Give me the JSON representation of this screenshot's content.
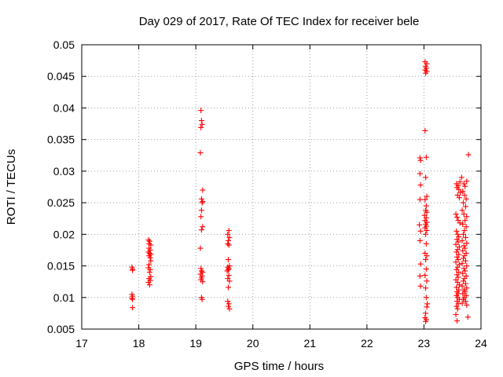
{
  "chart_data": {
    "type": "scatter",
    "title": "Day 029 of 2017, Rate Of TEC Index for receiver bele",
    "xlabel": "GPS time / hours",
    "ylabel": "ROTI / TECUs",
    "xlim": [
      17,
      24
    ],
    "ylim": [
      0.005,
      0.05
    ],
    "xticks": [
      17,
      18,
      19,
      20,
      21,
      22,
      23,
      24
    ],
    "xtick_labels": [
      "17",
      "18",
      "19",
      "20",
      "21",
      "22",
      "23",
      "24"
    ],
    "yticks": [
      0.005,
      0.01,
      0.015,
      0.02,
      0.025,
      0.03,
      0.035,
      0.04,
      0.045,
      0.05
    ],
    "ytick_labels": [
      "0.005",
      "0.01",
      "0.015",
      "0.02",
      "0.025",
      "0.03",
      "0.035",
      "0.04",
      "0.045",
      "0.05"
    ],
    "grid": true,
    "marker": "+",
    "color": "#ff0000",
    "series": [
      {
        "name": "ROTI",
        "points": [
          [
            17.88,
            0.0148
          ],
          [
            17.89,
            0.0145
          ],
          [
            17.89,
            0.0143
          ],
          [
            17.88,
            0.0105
          ],
          [
            17.89,
            0.0102
          ],
          [
            17.88,
            0.0099
          ],
          [
            17.89,
            0.0097
          ],
          [
            17.89,
            0.0084
          ],
          [
            18.17,
            0.0191
          ],
          [
            18.19,
            0.0189
          ],
          [
            18.18,
            0.0185
          ],
          [
            18.21,
            0.0183
          ],
          [
            18.18,
            0.0178
          ],
          [
            18.2,
            0.0175
          ],
          [
            18.17,
            0.0172
          ],
          [
            18.19,
            0.017
          ],
          [
            18.21,
            0.0168
          ],
          [
            18.18,
            0.0166
          ],
          [
            18.2,
            0.0163
          ],
          [
            18.21,
            0.0158
          ],
          [
            18.18,
            0.0152
          ],
          [
            18.17,
            0.0147
          ],
          [
            18.2,
            0.0144
          ],
          [
            18.19,
            0.014
          ],
          [
            18.21,
            0.0133
          ],
          [
            18.18,
            0.013
          ],
          [
            18.2,
            0.0127
          ],
          [
            18.17,
            0.0124
          ],
          [
            18.19,
            0.012
          ],
          [
            19.09,
            0.0396
          ],
          [
            19.1,
            0.038
          ],
          [
            19.11,
            0.0374
          ],
          [
            19.09,
            0.0369
          ],
          [
            19.08,
            0.0329
          ],
          [
            19.12,
            0.027
          ],
          [
            19.1,
            0.0256
          ],
          [
            19.12,
            0.0252
          ],
          [
            19.11,
            0.025
          ],
          [
            19.1,
            0.0238
          ],
          [
            19.09,
            0.0228
          ],
          [
            19.12,
            0.0212
          ],
          [
            19.1,
            0.0207
          ],
          [
            19.08,
            0.0178
          ],
          [
            19.09,
            0.0146
          ],
          [
            19.1,
            0.0142
          ],
          [
            19.12,
            0.014
          ],
          [
            19.08,
            0.0137
          ],
          [
            19.11,
            0.0134
          ],
          [
            19.1,
            0.0131
          ],
          [
            19.09,
            0.0128
          ],
          [
            19.12,
            0.0125
          ],
          [
            19.1,
            0.01
          ],
          [
            19.11,
            0.0097
          ],
          [
            19.58,
            0.0206
          ],
          [
            19.56,
            0.02
          ],
          [
            19.59,
            0.0195
          ],
          [
            19.57,
            0.019
          ],
          [
            19.56,
            0.0185
          ],
          [
            19.58,
            0.0183
          ],
          [
            19.57,
            0.016
          ],
          [
            19.59,
            0.015
          ],
          [
            19.56,
            0.0148
          ],
          [
            19.58,
            0.0146
          ],
          [
            19.57,
            0.0144
          ],
          [
            19.55,
            0.0142
          ],
          [
            19.58,
            0.0135
          ],
          [
            19.56,
            0.013
          ],
          [
            19.59,
            0.0126
          ],
          [
            19.57,
            0.0116
          ],
          [
            19.56,
            0.0094
          ],
          [
            19.58,
            0.009
          ],
          [
            19.57,
            0.0086
          ],
          [
            19.59,
            0.0082
          ],
          [
            22.93,
            0.0321
          ],
          [
            22.94,
            0.0317
          ],
          [
            22.93,
            0.0296
          ],
          [
            22.94,
            0.0278
          ],
          [
            22.93,
            0.0255
          ],
          [
            22.92,
            0.0215
          ],
          [
            22.94,
            0.0205
          ],
          [
            22.93,
            0.019
          ],
          [
            22.94,
            0.0153
          ],
          [
            22.93,
            0.0134
          ],
          [
            22.94,
            0.0118
          ],
          [
            23.02,
            0.0473
          ],
          [
            23.05,
            0.047
          ],
          [
            23.03,
            0.0466
          ],
          [
            23.04,
            0.0463
          ],
          [
            23.02,
            0.046
          ],
          [
            23.05,
            0.0458
          ],
          [
            23.03,
            0.0455
          ],
          [
            23.02,
            0.0364
          ],
          [
            23.04,
            0.0322
          ],
          [
            23.03,
            0.029
          ],
          [
            23.05,
            0.026
          ],
          [
            23.02,
            0.0255
          ],
          [
            23.04,
            0.0245
          ],
          [
            23.03,
            0.0238
          ],
          [
            23.05,
            0.0235
          ],
          [
            23.01,
            0.023
          ],
          [
            23.04,
            0.0226
          ],
          [
            23.02,
            0.0222
          ],
          [
            23.05,
            0.0219
          ],
          [
            23.03,
            0.0216
          ],
          [
            23.04,
            0.0213
          ],
          [
            23.02,
            0.021
          ],
          [
            23.05,
            0.0206
          ],
          [
            23.03,
            0.02
          ],
          [
            23.04,
            0.0185
          ],
          [
            23.02,
            0.017
          ],
          [
            23.05,
            0.0166
          ],
          [
            23.03,
            0.016
          ],
          [
            23.04,
            0.0145
          ],
          [
            23.02,
            0.0135
          ],
          [
            23.05,
            0.0126
          ],
          [
            23.03,
            0.0115
          ],
          [
            23.04,
            0.01
          ],
          [
            23.06,
            0.009
          ],
          [
            23.05,
            0.0085
          ],
          [
            23.03,
            0.0075
          ],
          [
            23.02,
            0.0068
          ],
          [
            23.04,
            0.0065
          ],
          [
            23.03,
            0.0062
          ],
          [
            23.57,
            0.028
          ],
          [
            23.6,
            0.0277
          ],
          [
            23.58,
            0.0274
          ],
          [
            23.63,
            0.0283
          ],
          [
            23.61,
            0.0271
          ],
          [
            23.64,
            0.0266
          ],
          [
            23.59,
            0.0262
          ],
          [
            23.62,
            0.0258
          ],
          [
            23.56,
            0.0232
          ],
          [
            23.58,
            0.0227
          ],
          [
            23.6,
            0.0222
          ],
          [
            23.63,
            0.0218
          ],
          [
            23.57,
            0.0205
          ],
          [
            23.59,
            0.02
          ],
          [
            23.61,
            0.0196
          ],
          [
            23.58,
            0.0192
          ],
          [
            23.6,
            0.0188
          ],
          [
            23.56,
            0.0184
          ],
          [
            23.62,
            0.018
          ],
          [
            23.59,
            0.0176
          ],
          [
            23.57,
            0.0172
          ],
          [
            23.61,
            0.0168
          ],
          [
            23.58,
            0.0164
          ],
          [
            23.6,
            0.016
          ],
          [
            23.56,
            0.0156
          ],
          [
            23.62,
            0.0152
          ],
          [
            23.59,
            0.0148
          ],
          [
            23.57,
            0.0144
          ],
          [
            23.61,
            0.014
          ],
          [
            23.58,
            0.0136
          ],
          [
            23.6,
            0.0132
          ],
          [
            23.56,
            0.0128
          ],
          [
            23.59,
            0.0124
          ],
          [
            23.62,
            0.012
          ],
          [
            23.57,
            0.0116
          ],
          [
            23.61,
            0.0112
          ],
          [
            23.58,
            0.0109
          ],
          [
            23.6,
            0.0106
          ],
          [
            23.57,
            0.0103
          ],
          [
            23.59,
            0.01
          ],
          [
            23.62,
            0.0097
          ],
          [
            23.58,
            0.0094
          ],
          [
            23.6,
            0.009
          ],
          [
            23.57,
            0.0086
          ],
          [
            23.59,
            0.0082
          ],
          [
            23.56,
            0.0073
          ],
          [
            23.58,
            0.0063
          ],
          [
            23.66,
            0.029
          ],
          [
            23.7,
            0.028
          ],
          [
            23.72,
            0.0276
          ],
          [
            23.75,
            0.0284
          ],
          [
            23.68,
            0.0268
          ],
          [
            23.71,
            0.0262
          ],
          [
            23.74,
            0.0256
          ],
          [
            23.69,
            0.025
          ],
          [
            23.73,
            0.0244
          ],
          [
            23.67,
            0.0238
          ],
          [
            23.7,
            0.0232
          ],
          [
            23.75,
            0.0228
          ],
          [
            23.72,
            0.0222
          ],
          [
            23.68,
            0.0216
          ],
          [
            23.74,
            0.0212
          ],
          [
            23.71,
            0.0206
          ],
          [
            23.69,
            0.02
          ],
          [
            23.73,
            0.0195
          ],
          [
            23.67,
            0.019
          ],
          [
            23.75,
            0.0186
          ],
          [
            23.7,
            0.0182
          ],
          [
            23.72,
            0.0178
          ],
          [
            23.68,
            0.0174
          ],
          [
            23.74,
            0.017
          ],
          [
            23.71,
            0.0166
          ],
          [
            23.69,
            0.0162
          ],
          [
            23.73,
            0.0158
          ],
          [
            23.67,
            0.0154
          ],
          [
            23.75,
            0.015
          ],
          [
            23.7,
            0.0146
          ],
          [
            23.72,
            0.0142
          ],
          [
            23.68,
            0.0138
          ],
          [
            23.74,
            0.0134
          ],
          [
            23.71,
            0.013
          ],
          [
            23.69,
            0.0126
          ],
          [
            23.73,
            0.0122
          ],
          [
            23.67,
            0.0118
          ],
          [
            23.75,
            0.0115
          ],
          [
            23.7,
            0.0112
          ],
          [
            23.72,
            0.0109
          ],
          [
            23.68,
            0.0106
          ],
          [
            23.74,
            0.0103
          ],
          [
            23.71,
            0.01
          ],
          [
            23.69,
            0.0097
          ],
          [
            23.73,
            0.0094
          ],
          [
            23.67,
            0.0091
          ],
          [
            23.75,
            0.0088
          ],
          [
            23.78,
            0.0326
          ],
          [
            23.77,
            0.0069
          ]
        ]
      }
    ]
  }
}
